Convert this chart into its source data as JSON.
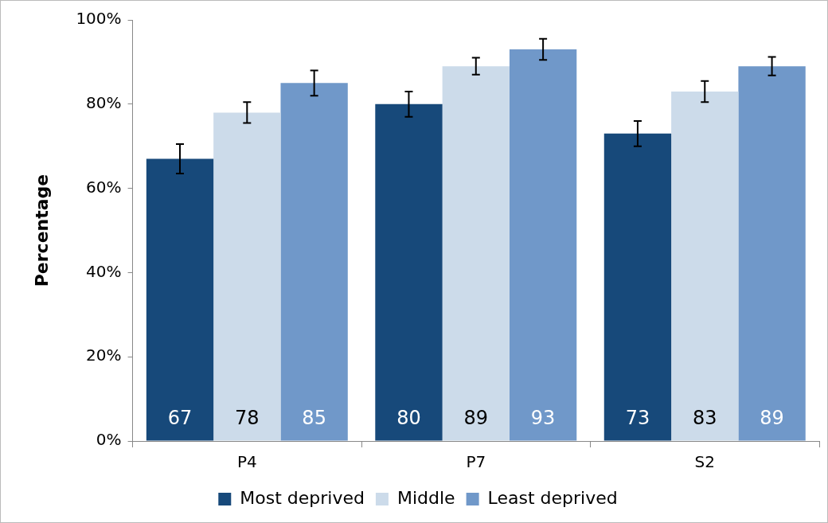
{
  "chart_data": {
    "type": "bar",
    "ylabel": "Percentage",
    "categories": [
      "P4",
      "P7",
      "S2"
    ],
    "series": [
      {
        "name": "Most deprived",
        "color": "#17497a",
        "values": [
          67,
          80,
          73
        ],
        "errors": [
          3.5,
          3,
          3
        ]
      },
      {
        "name": "Middle",
        "color": "#ccdbea",
        "values": [
          78,
          89,
          83
        ],
        "errors": [
          2.5,
          2,
          2.5
        ]
      },
      {
        "name": "Least deprived",
        "color": "#7098c9",
        "values": [
          85,
          93,
          89
        ],
        "errors": [
          3,
          2.5,
          2.2
        ]
      }
    ],
    "ylim": [
      0,
      100
    ],
    "yticks": [
      {
        "value": 0,
        "label": "0%"
      },
      {
        "value": 20,
        "label": "20%"
      },
      {
        "value": 40,
        "label": "40%"
      },
      {
        "value": 60,
        "label": "60%"
      },
      {
        "value": 80,
        "label": "80%"
      },
      {
        "value": 100,
        "label": "100%"
      }
    ],
    "grid": false,
    "legend": "bottom",
    "data_labels": true
  }
}
